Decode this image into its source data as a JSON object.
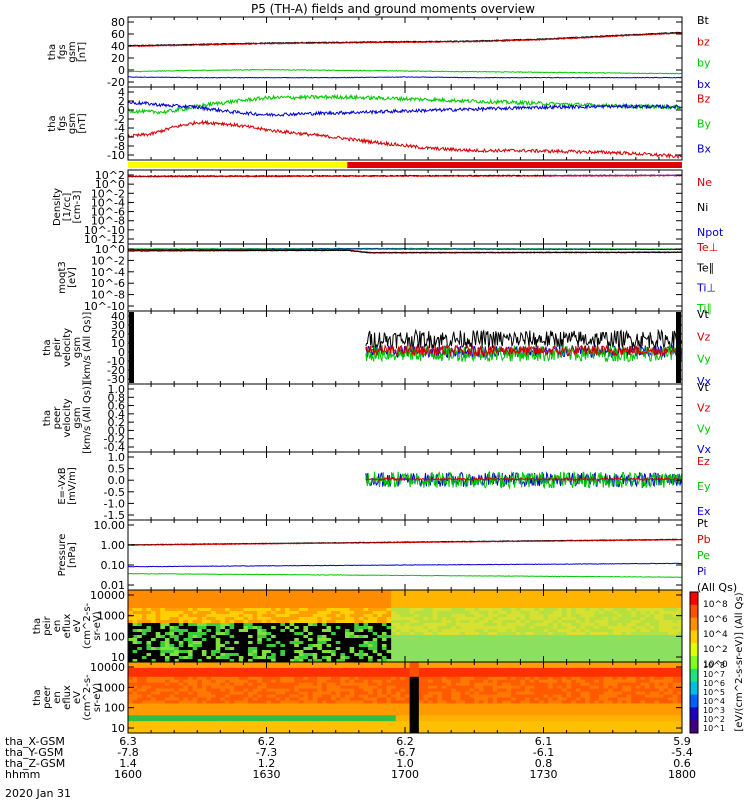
{
  "title": "P5 (TH-A) fields and ground moments overview",
  "date_label": "2020 Jan 31",
  "colors": {
    "black": "#000000",
    "red": "#d40000",
    "green": "#00c800",
    "blue": "#0000d0",
    "magenta": "#c800c8",
    "yellow": "#ffff00",
    "bar_red": "#e00000",
    "axis": "#000000"
  },
  "chart_data": [
    {
      "id": "fgs_gsm_mag",
      "type": "line",
      "ylabel": [
        "tha",
        "fgs",
        "gsm",
        "[nT]"
      ],
      "yticks": [
        "80",
        "60",
        "40",
        "20",
        "0",
        "-20"
      ],
      "ylim": [
        -20,
        85
      ],
      "legend": [
        {
          "label": "Bt",
          "color": "black"
        },
        {
          "label": "bz",
          "color": "red"
        },
        {
          "label": "by",
          "color": "green"
        },
        {
          "label": "bx",
          "color": "blue"
        }
      ],
      "series": [
        {
          "name": "Bt",
          "color": "black",
          "x": [
            0,
            30,
            60,
            90,
            120,
            150,
            180,
            210,
            240
          ],
          "y": [
            42,
            44,
            46,
            47,
            48,
            49,
            52,
            57,
            62
          ],
          "noise": 0.6
        },
        {
          "name": "bz",
          "color": "red",
          "x": [
            0,
            30,
            60,
            90,
            120,
            150,
            180,
            210,
            240
          ],
          "y": [
            41,
            43,
            45,
            46,
            47,
            48,
            51,
            56,
            61
          ],
          "noise": 0.6
        },
        {
          "name": "by",
          "color": "green",
          "x": [
            0,
            30,
            60,
            90,
            120,
            150,
            180,
            210,
            240
          ],
          "y": [
            3,
            5,
            6,
            5,
            4,
            3,
            2,
            1,
            0
          ],
          "noise": 0.5
        },
        {
          "name": "bx",
          "color": "blue",
          "x": [
            0,
            30,
            60,
            90,
            120,
            150,
            180,
            210,
            240
          ],
          "y": [
            -5,
            -6,
            -6,
            -6,
            -5,
            -6,
            -6,
            -6,
            -6
          ],
          "noise": 0.4
        }
      ]
    },
    {
      "id": "fgs_gse_comp",
      "type": "line",
      "ylabel": [
        "tha",
        "fgs",
        "gsm",
        "[nT]"
      ],
      "yticks": [
        "4",
        "2",
        "0",
        "-2",
        "-4",
        "-6",
        "-8",
        "-10"
      ],
      "ylim": [
        -11,
        4.5
      ],
      "legend": [
        {
          "label": "Bz",
          "color": "red"
        },
        {
          "label": "By",
          "color": "green"
        },
        {
          "label": "Bx",
          "color": "blue"
        }
      ],
      "series": [
        {
          "name": "Bz",
          "color": "red",
          "x": [
            0,
            10,
            20,
            30,
            40,
            50,
            60,
            75,
            90,
            110,
            130,
            150,
            170,
            190,
            210,
            225,
            240
          ],
          "y": [
            -6,
            -5.5,
            -4,
            -3,
            -3.2,
            -3.8,
            -4.6,
            -5.4,
            -6.2,
            -7.4,
            -8.5,
            -9.0,
            -9.0,
            -9.2,
            -9.4,
            -9.8,
            -10.3
          ],
          "noise": 0.35
        },
        {
          "name": "By",
          "color": "green",
          "x": [
            0,
            8,
            16,
            24,
            32,
            45,
            60,
            90,
            120,
            150,
            180,
            210,
            240
          ],
          "y": [
            -0.5,
            -0.8,
            -0.8,
            -0.2,
            0.6,
            1.4,
            2.2,
            2.4,
            2.0,
            1.5,
            1.0,
            0.5,
            0.2
          ],
          "noise": 0.4
        },
        {
          "name": "Bx",
          "color": "blue",
          "x": [
            0,
            8,
            16,
            30,
            45,
            60,
            90,
            120,
            150,
            180,
            210,
            240
          ],
          "y": [
            1.2,
            1.0,
            0.6,
            0.2,
            -0.8,
            -1.4,
            -1.0,
            -0.6,
            -0.2,
            0.2,
            0.4,
            0.3
          ],
          "noise": 0.35
        }
      ]
    },
    {
      "id": "mode_bar",
      "type": "bar",
      "segments": [
        {
          "from": 0,
          "to": 95,
          "color": "yellow"
        },
        {
          "from": 95,
          "to": 240,
          "color": "bar_red"
        }
      ]
    },
    {
      "id": "density",
      "type": "line",
      "ylabel": [
        "Density",
        "[1/cc]",
        "[cm-3]"
      ],
      "yticks": [
        "10^2",
        "10^0",
        "10^-2",
        "10^-4",
        "10^-6",
        "10^-8",
        "10^-10",
        "10^-12"
      ],
      "ylim": [
        -13,
        2.5
      ],
      "legend": [
        {
          "label": "Ne",
          "color": "red"
        },
        {
          "label": "Ni",
          "color": "black"
        },
        {
          "label": "Npot",
          "color": "blue"
        }
      ],
      "series": [
        {
          "name": "Ni",
          "color": "black",
          "x": [
            0,
            240
          ],
          "y": [
            1.2,
            1.4
          ],
          "noise": 0.08
        },
        {
          "name": "Ne",
          "color": "red",
          "x": [
            0,
            240
          ],
          "y": [
            1.1,
            1.3
          ],
          "noise": 0.08
        },
        {
          "name": "Npot",
          "color": "magenta",
          "x": [
            180,
            240
          ],
          "y": [
            1.3,
            1.4
          ],
          "noise": 0.05
        }
      ]
    },
    {
      "id": "temperature",
      "type": "line",
      "ylabel": [
        "moqt3",
        "[eV]"
      ],
      "yticks": [
        "10^0",
        "10^-2",
        "10^-4",
        "10^-6",
        "10^-8",
        "10^-10"
      ],
      "ylim": [
        -11,
        2.5
      ],
      "legend": [
        {
          "label": "Te⊥",
          "color": "red"
        },
        {
          "label": "Te∥",
          "color": "black"
        },
        {
          "label": "Ti⊥",
          "color": "blue"
        },
        {
          "label": "Ti∥",
          "color": "green"
        }
      ],
      "series": [
        {
          "name": "Ti∥",
          "color": "green",
          "x": [
            0,
            100,
            240
          ],
          "y": [
            1.5,
            1.6,
            1.5
          ],
          "noise": 0.05
        },
        {
          "name": "Ti⊥",
          "color": "blue",
          "x": [
            0,
            100,
            240
          ],
          "y": [
            1.4,
            1.5,
            1.4
          ],
          "noise": 0.05
        },
        {
          "name": "Te⊥",
          "color": "red",
          "x": [
            0,
            95,
            105,
            240
          ],
          "y": [
            1.2,
            1.3,
            0.8,
            0.9
          ],
          "noise": 0.05
        },
        {
          "name": "Te∥",
          "color": "black",
          "x": [
            0,
            95,
            105,
            240
          ],
          "y": [
            1.1,
            1.2,
            0.7,
            0.8
          ],
          "noise": 0.05
        }
      ]
    },
    {
      "id": "peir_velocity",
      "type": "line",
      "ylabel": [
        "tha",
        "peir",
        "velocity",
        "gsm",
        "[km/s (All Qs)]"
      ],
      "yticks": [
        "40",
        "30",
        "20",
        "10",
        "0",
        "-10",
        "-20",
        "-30"
      ],
      "ylim": [
        -32,
        40
      ],
      "legend": [
        {
          "label": "Vt",
          "color": "black"
        },
        {
          "label": "Vz",
          "color": "red"
        },
        {
          "label": "Vy",
          "color": "green"
        },
        {
          "label": "Vx",
          "color": "blue"
        }
      ],
      "noisy_start": 103,
      "series": [
        {
          "name": "Vt",
          "color": "black",
          "x": [
            103,
            240
          ],
          "y": [
            12,
            12
          ],
          "noise": 9
        },
        {
          "name": "Vx",
          "color": "blue",
          "x": [
            103,
            240
          ],
          "y": [
            0,
            0
          ],
          "noise": 6
        },
        {
          "name": "Vy",
          "color": "green",
          "x": [
            103,
            240
          ],
          "y": [
            -2,
            -2
          ],
          "noise": 8
        },
        {
          "name": "Vz",
          "color": "red",
          "x": [
            103,
            240
          ],
          "y": [
            1,
            1
          ],
          "noise": 5
        }
      ]
    },
    {
      "id": "peer_velocity",
      "type": "line",
      "ylabel": [
        "tha",
        "peer",
        "velocity",
        "gsm",
        "[km/s (All Qs)]"
      ],
      "yticks": [
        "1.0",
        "0.8",
        "0.6",
        "0.4",
        "0.2",
        "0.0",
        "-0.2",
        "-0.4"
      ],
      "ylim": [
        -0.45,
        1.02
      ],
      "legend": [
        {
          "label": "Vt",
          "color": "black"
        },
        {
          "label": "Vz",
          "color": "red"
        },
        {
          "label": "Vy",
          "color": "green"
        },
        {
          "label": "Vx",
          "color": "blue"
        }
      ],
      "series": []
    },
    {
      "id": "efield",
      "type": "line",
      "ylabel": [
        "E=-VxB",
        "[mV/m]"
      ],
      "yticks": [
        "1.0",
        "0.5",
        "0.0",
        "-0.5",
        "-1.0",
        "-1.5"
      ],
      "ylim": [
        -1.6,
        1.1
      ],
      "legend": [
        {
          "label": "Ez",
          "color": "red"
        },
        {
          "label": "Ey",
          "color": "green"
        },
        {
          "label": "Ex",
          "color": "blue"
        }
      ],
      "series": [
        {
          "name": "Ex",
          "color": "blue",
          "x": [
            103,
            240
          ],
          "y": [
            0,
            0
          ],
          "noise": 0.28
        },
        {
          "name": "Ey",
          "color": "green",
          "x": [
            103,
            240
          ],
          "y": [
            0,
            0
          ],
          "noise": 0.33
        },
        {
          "name": "Ez",
          "color": "red",
          "x": [
            103,
            240
          ],
          "y": [
            0.02,
            0.02
          ],
          "noise": 0.04
        }
      ]
    },
    {
      "id": "pressure",
      "type": "line",
      "yscale": "log",
      "ylabel": [
        "Pressure",
        "[nPa]"
      ],
      "yticks": [
        "10.00",
        "1.00",
        "0.10",
        "0.01"
      ],
      "ylim": [
        -2,
        1
      ],
      "legend": [
        {
          "label": "Pt",
          "color": "black"
        },
        {
          "label": "Pb",
          "color": "red"
        },
        {
          "label": "Pe",
          "color": "green"
        },
        {
          "label": "Pi",
          "color": "blue"
        },
        {
          "label": "(All Qs)",
          "color": "black"
        }
      ],
      "series": [
        {
          "name": "Pt",
          "color": "black",
          "x": [
            0,
            240
          ],
          "y": [
            -0.06,
            0.17
          ],
          "noise": 0.01
        },
        {
          "name": "Pb",
          "color": "red",
          "x": [
            0,
            240
          ],
          "y": [
            -0.08,
            0.15
          ],
          "noise": 0.01
        },
        {
          "name": "Pi",
          "color": "blue",
          "x": [
            0,
            240
          ],
          "y": [
            -1.0,
            -0.86
          ],
          "noise": 0.01
        },
        {
          "name": "Pe",
          "color": "green",
          "x": [
            0,
            240
          ],
          "y": [
            -1.3,
            -1.45
          ],
          "noise": 0.01
        }
      ]
    },
    {
      "id": "peir_spec",
      "type": "heatmap",
      "ylabel": [
        "tha",
        "peir",
        "en",
        "eflux",
        "eV",
        "(cm^2-s-",
        "sr-eV)"
      ],
      "yticks": [
        "10000",
        "1000",
        "100",
        "10"
      ]
    },
    {
      "id": "peer_spec",
      "type": "heatmap",
      "ylabel": [
        "tha",
        "peer",
        "en",
        "eflux",
        "eV",
        "(cm^2-s-",
        "sr-eV)"
      ],
      "yticks": [
        "10000",
        "1000",
        "100",
        "10"
      ]
    },
    {
      "id": "colorbar",
      "type": "heatmap",
      "label": "[eV/(cm^2-s-sr-eV)] (All Qs)",
      "ticks_upper": [
        "10^8",
        "10^6",
        "10^4",
        "10^2",
        "10^0"
      ],
      "ticks_lower": [
        "10^8",
        "10^7",
        "10^6",
        "10^5",
        "10^4",
        "10^3",
        "10^2",
        "10^1"
      ]
    },
    {
      "id": "x_axis",
      "type": "table",
      "rows": [
        {
          "label": "tha_X-GSM",
          "values": [
            "6.3",
            "6.2",
            "6.2",
            "6.1",
            "5.9"
          ]
        },
        {
          "label": "tha_Y-GSM",
          "values": [
            "-7.8",
            "-7.3",
            "-6.7",
            "-6.1",
            "-5.4"
          ]
        },
        {
          "label": "tha_Z-GSM",
          "values": [
            "1.4",
            "1.2",
            "1.0",
            "0.8",
            "0.6"
          ]
        },
        {
          "label": "hhmm",
          "values": [
            "1600",
            "1630",
            "1700",
            "1730",
            "1800"
          ]
        }
      ],
      "xlim": [
        0,
        240
      ],
      "tick_positions": [
        0,
        60,
        120,
        180,
        240
      ]
    }
  ]
}
